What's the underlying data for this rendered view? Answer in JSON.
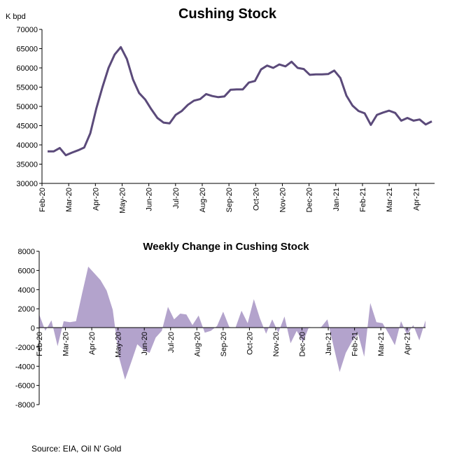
{
  "chart_data": [
    {
      "type": "line",
      "title": "Cushing Stock",
      "ylabel": "K bpd",
      "xlabel": "",
      "ylim": [
        30000,
        70000
      ],
      "y_ticks": [
        30000,
        35000,
        40000,
        45000,
        50000,
        55000,
        60000,
        65000,
        70000
      ],
      "x_ticks": [
        "Feb-20",
        "Mar-20",
        "Apr-20",
        "May-20",
        "Jun-20",
        "Jul-20",
        "Aug-20",
        "Sep-20",
        "Oct-20",
        "Nov-20",
        "Dec-20",
        "Jan-21",
        "Feb-21",
        "Mar-21",
        "Apr-21"
      ],
      "grid": false,
      "line_color": "#5b4a7a",
      "series": [
        {
          "name": "",
          "values": [
            38300,
            38300,
            39200,
            37300,
            38000,
            38600,
            39300,
            43000,
            49500,
            55000,
            60000,
            63500,
            65400,
            62300,
            57000,
            53500,
            51800,
            49300,
            47000,
            45800,
            45600,
            47800,
            48800,
            50400,
            51500,
            51900,
            53200,
            52700,
            52400,
            52600,
            54300,
            54400,
            54400,
            56200,
            56600,
            59600,
            60600,
            60000,
            60900,
            60400,
            61600,
            60000,
            59700,
            58200,
            58300,
            58300,
            58400,
            59300,
            57400,
            52800,
            50200,
            48800,
            48200,
            45200,
            47800,
            48400,
            48900,
            48300,
            46300,
            47000,
            46300,
            46600,
            45300,
            46100
          ]
        }
      ]
    },
    {
      "type": "area",
      "title": "Weekly Change in Cushing Stock",
      "ylabel": "",
      "xlabel": "",
      "ylim": [
        -8000,
        8000
      ],
      "y_ticks": [
        -8000,
        -6000,
        -4000,
        -2000,
        0,
        2000,
        4000,
        6000,
        8000
      ],
      "x_ticks": [
        "Feb-20",
        "Mar-20",
        "Apr-20",
        "May-20",
        "Jun-20",
        "Jul-20",
        "Aug-20",
        "Sep-20",
        "Oct-20",
        "Nov-20",
        "Dec-20",
        "Jan-21",
        "Feb-21",
        "Mar-21",
        "Apr-21"
      ],
      "grid": false,
      "fill_color": "#b3a3cc",
      "series": [
        {
          "name": "",
          "values": [
            1400,
            -300,
            800,
            -1900,
            700,
            600,
            700,
            3600,
            6400,
            5700,
            5000,
            3900,
            1900,
            -3000,
            -5400,
            -3600,
            -1700,
            -2300,
            -2600,
            -1000,
            -300,
            2200,
            900,
            1500,
            1400,
            300,
            1300,
            -500,
            -300,
            200,
            1700,
            100,
            0,
            1800,
            500,
            3000,
            1000,
            -600,
            900,
            -500,
            1200,
            -1600,
            -300,
            -1500,
            100,
            0,
            100,
            900,
            -1900,
            -4600,
            -2600,
            -1400,
            -600,
            -3000,
            2600,
            600,
            500,
            -600,
            -1800,
            700,
            -700,
            300,
            -1300,
            800
          ]
        }
      ]
    }
  ],
  "source_note": "Source: EIA, Oil N' Gold"
}
